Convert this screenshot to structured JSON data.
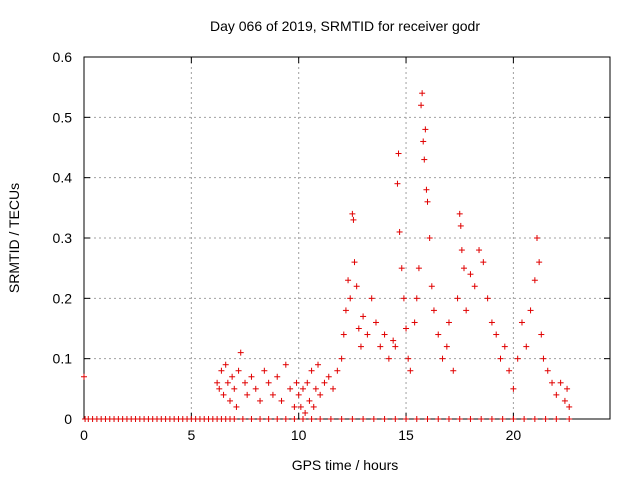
{
  "chart_data": {
    "type": "scatter",
    "title": "Day 066 of 2019, SRMTID for receiver godr",
    "xlabel": "GPS time / hours",
    "ylabel": "SRMTID / TECUs",
    "xlim": [
      0,
      24.5
    ],
    "ylim": [
      0,
      0.6
    ],
    "x_ticks": [
      0,
      5,
      10,
      15,
      20
    ],
    "y_ticks": [
      0,
      0.1,
      0.2,
      0.3,
      0.4,
      0.5,
      0.6
    ],
    "x_tick_labels": [
      "0",
      "5",
      "10",
      "15",
      "20"
    ],
    "y_tick_labels": [
      "0",
      "0.1",
      "0.2",
      "0.3",
      "0.4",
      "0.5",
      "0.6"
    ],
    "grid": true,
    "marker": "+",
    "series_color": "#e00000",
    "series": [
      {
        "name": "SRMTID",
        "points": [
          [
            0.0,
            0.07
          ],
          [
            0.05,
            0.0
          ],
          [
            0.2,
            0.0
          ],
          [
            0.4,
            0.0
          ],
          [
            0.6,
            0.0
          ],
          [
            0.8,
            0.0
          ],
          [
            1.0,
            0.0
          ],
          [
            1.2,
            0.0
          ],
          [
            1.4,
            0.0
          ],
          [
            1.6,
            0.0
          ],
          [
            1.8,
            0.0
          ],
          [
            2.0,
            0.0
          ],
          [
            2.2,
            0.0
          ],
          [
            2.4,
            0.0
          ],
          [
            2.6,
            0.0
          ],
          [
            2.8,
            0.0
          ],
          [
            3.0,
            0.0
          ],
          [
            3.2,
            0.0
          ],
          [
            3.4,
            0.0
          ],
          [
            3.6,
            0.0
          ],
          [
            3.8,
            0.0
          ],
          [
            4.0,
            0.0
          ],
          [
            4.2,
            0.0
          ],
          [
            4.4,
            0.0
          ],
          [
            4.6,
            0.0
          ],
          [
            4.8,
            0.0
          ],
          [
            5.0,
            0.0
          ],
          [
            5.2,
            0.0
          ],
          [
            5.4,
            0.0
          ],
          [
            5.6,
            0.0
          ],
          [
            5.8,
            0.0
          ],
          [
            6.0,
            0.0
          ],
          [
            6.2,
            0.0
          ],
          [
            6.4,
            0.0
          ],
          [
            6.6,
            0.0
          ],
          [
            6.8,
            0.0
          ],
          [
            7.0,
            0.0
          ],
          [
            7.4,
            0.0
          ],
          [
            7.8,
            0.0
          ],
          [
            8.2,
            0.0
          ],
          [
            8.6,
            0.0
          ],
          [
            9.0,
            0.0
          ],
          [
            9.4,
            0.0
          ],
          [
            9.8,
            0.0
          ],
          [
            10.2,
            0.0
          ],
          [
            10.6,
            0.0
          ],
          [
            11.0,
            0.0
          ],
          [
            11.5,
            0.0
          ],
          [
            12.0,
            0.0
          ],
          [
            12.5,
            0.0
          ],
          [
            13.0,
            0.0
          ],
          [
            13.5,
            0.0
          ],
          [
            14.0,
            0.0
          ],
          [
            14.5,
            0.0
          ],
          [
            15.0,
            0.0
          ],
          [
            15.5,
            0.0
          ],
          [
            16.0,
            0.0
          ],
          [
            16.5,
            0.0
          ],
          [
            17.0,
            0.0
          ],
          [
            17.5,
            0.0
          ],
          [
            18.0,
            0.0
          ],
          [
            18.5,
            0.0
          ],
          [
            19.0,
            0.0
          ],
          [
            19.5,
            0.0
          ],
          [
            20.0,
            0.0
          ],
          [
            20.5,
            0.0
          ],
          [
            21.0,
            0.0
          ],
          [
            21.5,
            0.0
          ],
          [
            22.0,
            0.0
          ],
          [
            22.6,
            0.0
          ],
          [
            6.2,
            0.06
          ],
          [
            6.3,
            0.05
          ],
          [
            6.4,
            0.08
          ],
          [
            6.5,
            0.04
          ],
          [
            6.6,
            0.09
          ],
          [
            6.7,
            0.06
          ],
          [
            6.8,
            0.03
          ],
          [
            6.9,
            0.07
          ],
          [
            7.0,
            0.05
          ],
          [
            7.1,
            0.02
          ],
          [
            7.2,
            0.08
          ],
          [
            7.3,
            0.11
          ],
          [
            7.5,
            0.06
          ],
          [
            7.6,
            0.04
          ],
          [
            7.8,
            0.07
          ],
          [
            8.0,
            0.05
          ],
          [
            8.2,
            0.03
          ],
          [
            8.4,
            0.08
          ],
          [
            8.6,
            0.06
          ],
          [
            8.8,
            0.04
          ],
          [
            9.0,
            0.07
          ],
          [
            9.2,
            0.03
          ],
          [
            9.4,
            0.09
          ],
          [
            9.6,
            0.05
          ],
          [
            9.8,
            0.02
          ],
          [
            9.9,
            0.06
          ],
          [
            10.0,
            0.04
          ],
          [
            10.1,
            0.02
          ],
          [
            10.2,
            0.05
          ],
          [
            10.3,
            0.01
          ],
          [
            10.4,
            0.06
          ],
          [
            10.5,
            0.03
          ],
          [
            10.6,
            0.08
          ],
          [
            10.7,
            0.02
          ],
          [
            10.8,
            0.05
          ],
          [
            10.9,
            0.09
          ],
          [
            11.0,
            0.04
          ],
          [
            11.2,
            0.06
          ],
          [
            11.4,
            0.07
          ],
          [
            11.6,
            0.05
          ],
          [
            11.8,
            0.08
          ],
          [
            12.0,
            0.1
          ],
          [
            12.1,
            0.14
          ],
          [
            12.2,
            0.18
          ],
          [
            12.3,
            0.23
          ],
          [
            12.4,
            0.2
          ],
          [
            12.5,
            0.34
          ],
          [
            12.55,
            0.33
          ],
          [
            12.6,
            0.26
          ],
          [
            12.7,
            0.22
          ],
          [
            12.8,
            0.15
          ],
          [
            12.9,
            0.12
          ],
          [
            13.0,
            0.17
          ],
          [
            13.2,
            0.14
          ],
          [
            13.4,
            0.2
          ],
          [
            13.6,
            0.16
          ],
          [
            13.8,
            0.12
          ],
          [
            14.0,
            0.14
          ],
          [
            14.2,
            0.1
          ],
          [
            14.4,
            0.13
          ],
          [
            14.5,
            0.12
          ],
          [
            14.6,
            0.39
          ],
          [
            14.65,
            0.44
          ],
          [
            14.7,
            0.31
          ],
          [
            14.8,
            0.25
          ],
          [
            14.9,
            0.2
          ],
          [
            15.0,
            0.15
          ],
          [
            15.1,
            0.1
          ],
          [
            15.2,
            0.08
          ],
          [
            15.4,
            0.16
          ],
          [
            15.5,
            0.2
          ],
          [
            15.6,
            0.25
          ],
          [
            15.7,
            0.52
          ],
          [
            15.75,
            0.54
          ],
          [
            15.8,
            0.46
          ],
          [
            15.85,
            0.43
          ],
          [
            15.9,
            0.48
          ],
          [
            15.95,
            0.38
          ],
          [
            16.0,
            0.36
          ],
          [
            16.1,
            0.3
          ],
          [
            16.2,
            0.22
          ],
          [
            16.3,
            0.18
          ],
          [
            16.5,
            0.14
          ],
          [
            16.7,
            0.1
          ],
          [
            16.9,
            0.12
          ],
          [
            17.0,
            0.16
          ],
          [
            17.2,
            0.08
          ],
          [
            17.4,
            0.2
          ],
          [
            17.5,
            0.34
          ],
          [
            17.55,
            0.32
          ],
          [
            17.6,
            0.28
          ],
          [
            17.7,
            0.25
          ],
          [
            17.8,
            0.18
          ],
          [
            18.0,
            0.24
          ],
          [
            18.2,
            0.22
          ],
          [
            18.4,
            0.28
          ],
          [
            18.6,
            0.26
          ],
          [
            18.8,
            0.2
          ],
          [
            19.0,
            0.16
          ],
          [
            19.2,
            0.14
          ],
          [
            19.4,
            0.1
          ],
          [
            19.6,
            0.12
          ],
          [
            19.8,
            0.08
          ],
          [
            20.0,
            0.05
          ],
          [
            20.2,
            0.1
          ],
          [
            20.4,
            0.16
          ],
          [
            20.6,
            0.12
          ],
          [
            20.8,
            0.18
          ],
          [
            21.0,
            0.23
          ],
          [
            21.1,
            0.3
          ],
          [
            21.2,
            0.26
          ],
          [
            21.3,
            0.14
          ],
          [
            21.4,
            0.1
          ],
          [
            21.6,
            0.08
          ],
          [
            21.8,
            0.06
          ],
          [
            22.0,
            0.04
          ],
          [
            22.2,
            0.06
          ],
          [
            22.4,
            0.03
          ],
          [
            22.5,
            0.05
          ],
          [
            22.6,
            0.02
          ]
        ]
      }
    ]
  }
}
